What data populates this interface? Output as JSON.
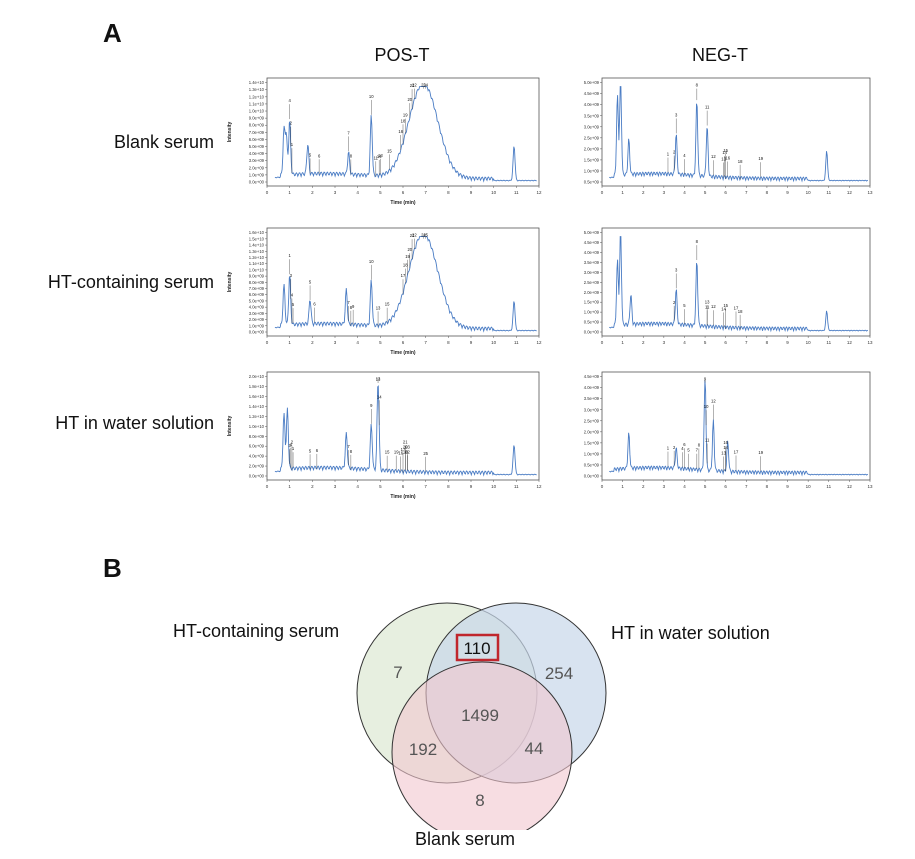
{
  "panelA": {
    "letter": "A",
    "columns": [
      "POS-T",
      "NEG-T"
    ],
    "rows": [
      "Blank serum",
      "HT-containing serum",
      "HT in water solution"
    ],
    "x_axis_label": "Time (min)",
    "y_axis_label": "Intensity",
    "trace_color": "#4a7cc4"
  },
  "panelB": {
    "letter": "B",
    "sets": {
      "left": "HT-containing serum",
      "right": "HT in water solution",
      "bottom": "Blank serum"
    }
  },
  "chart_data": [
    {
      "type": "line",
      "id": "pos-blank",
      "xlabel": "Time (min)",
      "ylabel": "Intensity",
      "xlim": [
        0,
        12
      ],
      "x_ticks": [
        "0",
        "1",
        "2",
        "3",
        "4",
        "5",
        "6",
        "7",
        "8",
        "9",
        "10",
        "11",
        "12"
      ],
      "y_ticks": [
        "0.0e+00",
        "1.0e+09",
        "2.0e+09",
        "3.0e+09",
        "4.0e+09",
        "5.0e+09",
        "6.0e+09",
        "7.0e+09",
        "8.0e+09",
        "9.0e+09",
        "1.0e+10",
        "1.1e+10",
        "1.2e+10",
        "1.3e+10",
        "1.4e+10"
      ],
      "peaks": [
        {
          "x": 0.75,
          "y": 0.45
        },
        {
          "x": 0.85,
          "y": 0.4
        },
        {
          "x": 1.0,
          "y": 0.55
        },
        {
          "x": 1.8,
          "y": 0.3
        },
        {
          "x": 3.6,
          "y": 0.22
        },
        {
          "x": 4.6,
          "y": 0.6
        },
        {
          "x": 6.9,
          "y": 0.95,
          "broad": true
        },
        {
          "x": 10.9,
          "y": 0.35
        }
      ],
      "peak_labels": [
        {
          "x": 1.0,
          "label": "4"
        },
        {
          "x": 1.05,
          "label": "2"
        },
        {
          "x": 1.1,
          "label": "1"
        },
        {
          "x": 1.9,
          "label": "5"
        },
        {
          "x": 2.3,
          "label": "6"
        },
        {
          "x": 3.6,
          "label": "7"
        },
        {
          "x": 3.7,
          "label": "8"
        },
        {
          "x": 4.6,
          "label": "10"
        },
        {
          "x": 4.8,
          "label": "11"
        },
        {
          "x": 4.95,
          "label": "14"
        },
        {
          "x": 5.0,
          "label": "13"
        },
        {
          "x": 5.4,
          "label": "15"
        },
        {
          "x": 5.9,
          "label": "16"
        },
        {
          "x": 6.0,
          "label": "18"
        },
        {
          "x": 6.1,
          "label": "19"
        },
        {
          "x": 6.3,
          "label": "20"
        },
        {
          "x": 6.4,
          "label": "21"
        },
        {
          "x": 6.5,
          "label": "22"
        },
        {
          "x": 6.9,
          "label": "23"
        },
        {
          "x": 7.0,
          "label": "24"
        }
      ]
    },
    {
      "type": "line",
      "id": "neg-blank",
      "xlabel": "",
      "ylabel": "",
      "xlim": [
        0,
        13
      ],
      "x_ticks": [
        "0",
        "1",
        "2",
        "3",
        "4",
        "5",
        "6",
        "7",
        "8",
        "9",
        "10",
        "11",
        "12",
        "13"
      ],
      "y_ticks": [
        "0.5e+09",
        "1.0e+09",
        "1.5e+09",
        "2.0e+09",
        "2.5e+09",
        "3.0e+09",
        "3.5e+09",
        "4.0e+09",
        "4.5e+09",
        "5.0e+09"
      ],
      "peaks": [
        {
          "x": 0.75,
          "y": 0.8
        },
        {
          "x": 0.9,
          "y": 1.0
        },
        {
          "x": 1.3,
          "y": 0.35
        },
        {
          "x": 3.6,
          "y": 0.4
        },
        {
          "x": 4.6,
          "y": 0.75
        },
        {
          "x": 5.1,
          "y": 0.5
        },
        {
          "x": 10.9,
          "y": 0.3
        }
      ],
      "peak_labels": [
        {
          "x": 3.2,
          "label": "1"
        },
        {
          "x": 3.5,
          "label": "2"
        },
        {
          "x": 3.6,
          "label": "3"
        },
        {
          "x": 4.0,
          "label": "4"
        },
        {
          "x": 4.6,
          "label": "8"
        },
        {
          "x": 5.1,
          "label": "11"
        },
        {
          "x": 5.4,
          "label": "12"
        },
        {
          "x": 5.9,
          "label": "13"
        },
        {
          "x": 5.95,
          "label": "14"
        },
        {
          "x": 6.0,
          "label": "15"
        },
        {
          "x": 6.1,
          "label": "16"
        },
        {
          "x": 6.7,
          "label": "18"
        },
        {
          "x": 7.7,
          "label": "19"
        }
      ]
    },
    {
      "type": "line",
      "id": "pos-ht-serum",
      "xlabel": "Time (min)",
      "ylabel": "Intensity",
      "xlim": [
        0,
        12
      ],
      "x_ticks": [
        "0",
        "1",
        "2",
        "3",
        "4",
        "5",
        "6",
        "7",
        "8",
        "9",
        "10",
        "11",
        "12"
      ],
      "y_ticks": [
        "0.0e+00",
        "1.0e+09",
        "2.0e+09",
        "3.0e+09",
        "4.0e+09",
        "5.0e+09",
        "6.0e+09",
        "7.0e+09",
        "8.0e+09",
        "9.0e+09",
        "1.0e+10",
        "1.1e+10",
        "1.2e+10",
        "1.3e+10",
        "1.4e+10",
        "1.5e+10",
        "1.6e+10"
      ],
      "peaks": [
        {
          "x": 0.75,
          "y": 0.4
        },
        {
          "x": 1.0,
          "y": 0.5
        },
        {
          "x": 1.9,
          "y": 0.25
        },
        {
          "x": 3.5,
          "y": 0.35
        },
        {
          "x": 4.6,
          "y": 0.45
        },
        {
          "x": 6.9,
          "y": 0.95,
          "broad": true
        },
        {
          "x": 10.9,
          "y": 0.3
        }
      ],
      "peak_labels": [
        {
          "x": 1.0,
          "label": "1"
        },
        {
          "x": 1.05,
          "label": "3"
        },
        {
          "x": 1.1,
          "label": "4"
        },
        {
          "x": 1.15,
          "label": "5"
        },
        {
          "x": 1.9,
          "label": "5"
        },
        {
          "x": 2.1,
          "label": "6"
        },
        {
          "x": 3.6,
          "label": "7"
        },
        {
          "x": 3.7,
          "label": "8"
        },
        {
          "x": 3.8,
          "label": "9"
        },
        {
          "x": 4.6,
          "label": "10"
        },
        {
          "x": 4.9,
          "label": "13"
        },
        {
          "x": 5.3,
          "label": "15"
        },
        {
          "x": 6.0,
          "label": "17"
        },
        {
          "x": 6.1,
          "label": "18"
        },
        {
          "x": 6.2,
          "label": "19"
        },
        {
          "x": 6.3,
          "label": "20"
        },
        {
          "x": 6.4,
          "label": "21"
        },
        {
          "x": 6.5,
          "label": "22"
        },
        {
          "x": 6.9,
          "label": "24"
        },
        {
          "x": 7.0,
          "label": "25"
        }
      ]
    },
    {
      "type": "line",
      "id": "neg-ht-serum",
      "xlabel": "",
      "ylabel": "",
      "xlim": [
        0,
        13
      ],
      "x_ticks": [
        "0",
        "1",
        "2",
        "3",
        "4",
        "5",
        "6",
        "7",
        "8",
        "9",
        "10",
        "11",
        "12",
        "13"
      ],
      "y_ticks": [
        "0.0e+00",
        "0.5e+09",
        "1.0e+09",
        "1.5e+09",
        "2.0e+09",
        "2.5e+09",
        "3.0e+09",
        "3.5e+09",
        "4.0e+09",
        "4.5e+09",
        "5.0e+09"
      ],
      "peaks": [
        {
          "x": 0.75,
          "y": 0.65
        },
        {
          "x": 0.9,
          "y": 0.95
        },
        {
          "x": 1.4,
          "y": 0.3
        },
        {
          "x": 3.6,
          "y": 0.35
        },
        {
          "x": 4.6,
          "y": 0.65
        },
        {
          "x": 10.9,
          "y": 0.2
        }
      ],
      "peak_labels": [
        {
          "x": 3.5,
          "label": "2"
        },
        {
          "x": 3.6,
          "label": "3"
        },
        {
          "x": 4.0,
          "label": "5"
        },
        {
          "x": 4.6,
          "label": "8"
        },
        {
          "x": 5.1,
          "label": "11"
        },
        {
          "x": 5.4,
          "label": "12"
        },
        {
          "x": 5.1,
          "label": "13"
        },
        {
          "x": 5.9,
          "label": "14"
        },
        {
          "x": 6.0,
          "label": "15"
        },
        {
          "x": 6.5,
          "label": "17"
        },
        {
          "x": 6.7,
          "label": "18"
        }
      ]
    },
    {
      "type": "line",
      "id": "pos-ht-water",
      "xlabel": "Time (min)",
      "ylabel": "Intensity",
      "xlim": [
        0,
        12
      ],
      "x_ticks": [
        "0",
        "1",
        "2",
        "3",
        "4",
        "5",
        "6",
        "7",
        "8",
        "9",
        "10",
        "11",
        "12"
      ],
      "y_ticks": [
        "0.0e+00",
        "2.0e+09",
        "4.0e+09",
        "6.0e+09",
        "8.0e+09",
        "1.0e+10",
        "1.2e+10",
        "1.4e+10",
        "1.6e+10",
        "1.8e+10",
        "2.0e+10"
      ],
      "peaks": [
        {
          "x": 0.75,
          "y": 0.55
        },
        {
          "x": 0.9,
          "y": 0.6
        },
        {
          "x": 3.5,
          "y": 0.35
        },
        {
          "x": 4.6,
          "y": 0.45
        },
        {
          "x": 4.9,
          "y": 0.9
        },
        {
          "x": 10.9,
          "y": 0.3
        }
      ],
      "peak_labels": [
        {
          "x": 1.0,
          "label": "3"
        },
        {
          "x": 1.05,
          "label": "4"
        },
        {
          "x": 1.1,
          "label": "2"
        },
        {
          "x": 1.15,
          "label": "1"
        },
        {
          "x": 1.9,
          "label": "5"
        },
        {
          "x": 2.2,
          "label": "6"
        },
        {
          "x": 3.6,
          "label": "7"
        },
        {
          "x": 3.7,
          "label": "8"
        },
        {
          "x": 4.6,
          "label": "9"
        },
        {
          "x": 4.9,
          "label": "12"
        },
        {
          "x": 4.9,
          "label": "13"
        },
        {
          "x": 4.95,
          "label": "14"
        },
        {
          "x": 5.3,
          "label": "15"
        },
        {
          "x": 5.9,
          "label": "16"
        },
        {
          "x": 6.0,
          "label": "17"
        },
        {
          "x": 6.1,
          "label": "18"
        },
        {
          "x": 5.7,
          "label": "19"
        },
        {
          "x": 6.1,
          "label": "20"
        },
        {
          "x": 6.1,
          "label": "21"
        },
        {
          "x": 6.2,
          "label": "22"
        },
        {
          "x": 6.2,
          "label": "23"
        },
        {
          "x": 7.0,
          "label": "25"
        }
      ]
    },
    {
      "type": "line",
      "id": "neg-ht-water",
      "xlabel": "",
      "ylabel": "",
      "xlim": [
        0,
        13
      ],
      "x_ticks": [
        "0",
        "1",
        "2",
        "3",
        "4",
        "5",
        "6",
        "7",
        "8",
        "9",
        "10",
        "11",
        "12",
        "13"
      ],
      "y_ticks": [
        "0.0e+00",
        "0.5e+09",
        "1.0e+09",
        "1.5e+09",
        "2.0e+09",
        "2.5e+09",
        "3.0e+09",
        "3.5e+09",
        "4.0e+09",
        "4.5e+09"
      ],
      "peaks": [
        {
          "x": 1.3,
          "y": 0.35
        },
        {
          "x": 3.6,
          "y": 0.2
        },
        {
          "x": 5.0,
          "y": 0.95
        },
        {
          "x": 5.4,
          "y": 0.5
        },
        {
          "x": 6.1,
          "y": 0.3
        }
      ],
      "peak_labels": [
        {
          "x": 3.2,
          "label": "1"
        },
        {
          "x": 3.5,
          "label": "2"
        },
        {
          "x": 3.9,
          "label": "4"
        },
        {
          "x": 4.2,
          "label": "5"
        },
        {
          "x": 4.0,
          "label": "6"
        },
        {
          "x": 4.6,
          "label": "7"
        },
        {
          "x": 4.7,
          "label": "8"
        },
        {
          "x": 5.0,
          "label": "9"
        },
        {
          "x": 5.05,
          "label": "10"
        },
        {
          "x": 5.1,
          "label": "11"
        },
        {
          "x": 5.4,
          "label": "12"
        },
        {
          "x": 5.9,
          "label": "13"
        },
        {
          "x": 6.0,
          "label": "14"
        },
        {
          "x": 6.0,
          "label": "16"
        },
        {
          "x": 6.5,
          "label": "17"
        },
        {
          "x": 7.7,
          "label": "19"
        }
      ]
    },
    {
      "type": "venn",
      "id": "venn",
      "sets": [
        "HT-containing serum",
        "HT in water solution",
        "Blank serum"
      ],
      "regions": {
        "only_ht_serum": 7,
        "only_ht_water": 254,
        "only_blank": 8,
        "ht_serum_and_ht_water": 110,
        "ht_serum_and_blank": 192,
        "ht_water_and_blank": 44,
        "all_three": 1499
      },
      "highlighted_region": "ht_serum_and_ht_water",
      "colors": {
        "ht_serum": "#dfe9d6",
        "ht_water": "#c8d7ea",
        "blank": "#f2c6cf",
        "highlight": "#c0262d"
      }
    }
  ]
}
